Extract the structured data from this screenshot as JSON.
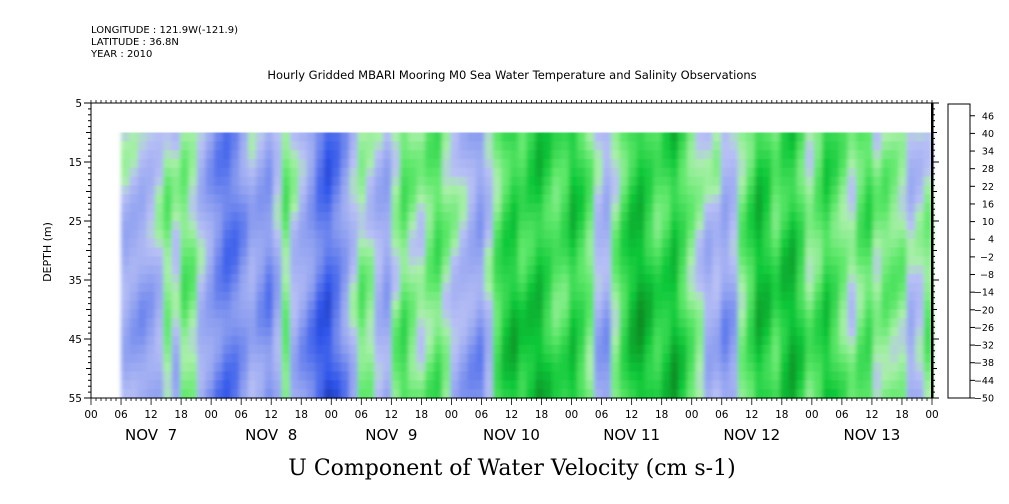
{
  "header": {
    "longitude": "LONGITUDE : 121.9W(-121.9)",
    "latitude": "LATITUDE : 36.8N",
    "year": "YEAR : 2010",
    "title": "Hourly Gridded MBARI Mooring M0 Sea Water Temperature and Salinity Observations"
  },
  "chart_data": {
    "type": "heatmap",
    "title": "Hourly Gridded MBARI Mooring M0 Sea Water Temperature and Salinity Observations",
    "xlabel": "U Component of Water Velocity (cm s-1)",
    "ylabel": "DEPTH (m)",
    "ylim": [
      55,
      5
    ],
    "y_ticks": [
      "5",
      "15",
      "25",
      "35",
      "45",
      "55"
    ],
    "y_tick_values": [
      5,
      15,
      25,
      35,
      45,
      55
    ],
    "x_hour_ticks": [
      "00",
      "06",
      "12",
      "18",
      "00",
      "06",
      "12",
      "18",
      "00",
      "06",
      "12",
      "18",
      "00",
      "06",
      "12",
      "18",
      "00",
      "06",
      "12",
      "18",
      "00",
      "06",
      "12",
      "18",
      "00",
      "06",
      "12",
      "18",
      "00"
    ],
    "x_day_labels": [
      "NOV  7",
      "NOV  8",
      "NOV  9",
      "NOV 10",
      "NOV 11",
      "NOV 12",
      "NOV 13"
    ],
    "data_depth_range": [
      10,
      55
    ],
    "data_start": "NOV 7 06",
    "colorbar_labels": [
      "46",
      "40",
      "34",
      "28",
      "22",
      "16",
      "10",
      "4",
      "-2",
      "-8",
      "-14",
      "-20",
      "-26",
      "-32",
      "-38",
      "-44",
      "-50"
    ],
    "colorbar_range": [
      -50,
      50
    ],
    "colorbar_step": 3,
    "colors": {
      "strong_positive": "#0a3d0a",
      "positive": "#11c93a",
      "weak_positive": "#a8f0a8",
      "weak_negative": "#b8c0f5",
      "negative": "#8a9cf0",
      "strong_negative": "#00003a"
    },
    "column_u": [
      -6,
      -8,
      -10,
      -8,
      -4,
      6,
      -2,
      8,
      4,
      -6,
      -12,
      -18,
      -22,
      -20,
      -14,
      -8,
      -12,
      -16,
      -6,
      8,
      -4,
      -10,
      -16,
      -24,
      -28,
      -22,
      -14,
      -4,
      6,
      2,
      -6,
      -10,
      4,
      12,
      6,
      2,
      8,
      12,
      4,
      -2,
      -6,
      -10,
      -14,
      -4,
      10,
      18,
      22,
      16,
      20,
      24,
      18,
      12,
      14,
      22,
      16,
      8,
      -6,
      -10,
      4,
      14,
      22,
      26,
      20,
      14,
      18,
      24,
      16,
      8,
      2,
      -6,
      -4,
      -12,
      -8,
      6,
      14,
      24,
      20,
      12,
      20,
      24,
      16,
      6,
      12,
      20,
      14,
      8,
      2,
      10,
      14,
      4,
      8,
      6,
      4,
      -6,
      -2,
      6
    ]
  }
}
